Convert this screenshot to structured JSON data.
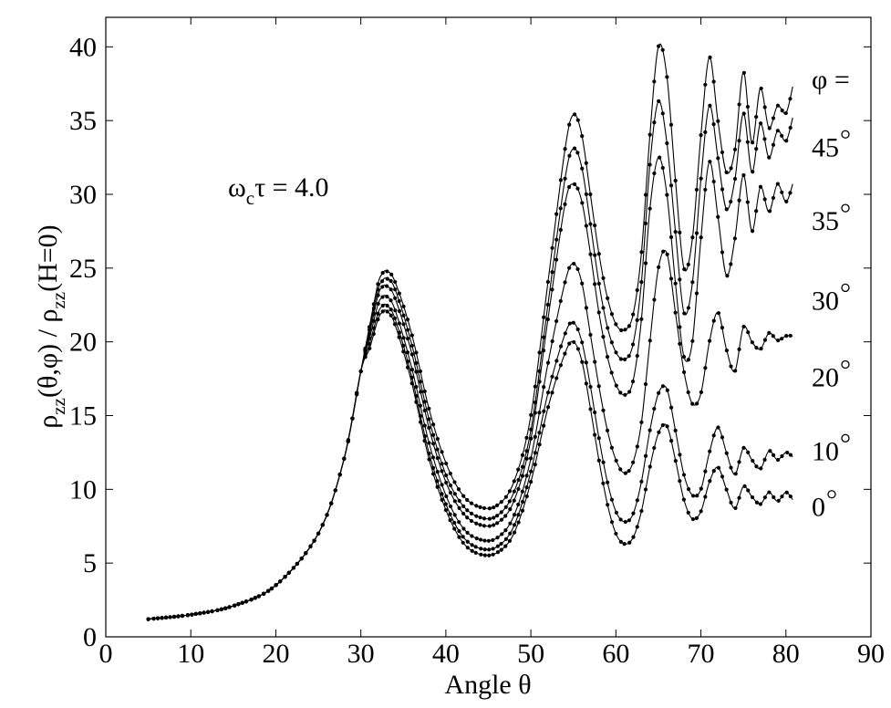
{
  "chart_data": {
    "type": "line",
    "xlabel": "Angle θ",
    "ylabel": "ρzz(θ,φ) / ρzz(H=0)",
    "ylabel_parts": {
      "rho1": "ρ",
      "sub1": "zz",
      "mid": "(θ,φ) / ρ",
      "sub2": "zz",
      "end": "(H=0)"
    },
    "annotation": {
      "omega": "ω",
      "sub": "c",
      "rest": "τ = 4.0"
    },
    "legend_title": "φ =",
    "xlim": [
      0,
      90
    ],
    "ylim": [
      0,
      42
    ],
    "xticks": [
      "0",
      "10",
      "20",
      "30",
      "40",
      "50",
      "60",
      "70",
      "80",
      "90"
    ],
    "yticks": [
      "0",
      "5",
      "10",
      "15",
      "20",
      "25",
      "30",
      "35",
      "40"
    ],
    "grid": false,
    "series": [
      {
        "name": "45°",
        "label_num": "45",
        "label_y": 33.2,
        "points": [
          [
            5,
            1.2
          ],
          [
            10,
            1.5
          ],
          [
            15,
            2.1
          ],
          [
            20,
            3.5
          ],
          [
            25,
            7.0
          ],
          [
            28,
            12
          ],
          [
            30,
            18
          ],
          [
            31,
            21
          ],
          [
            32,
            23.9
          ],
          [
            32.5,
            24.6
          ],
          [
            33,
            24.8
          ],
          [
            34,
            24.1
          ],
          [
            36,
            20.5
          ],
          [
            38,
            15.5
          ],
          [
            40,
            11.8
          ],
          [
            42,
            9.6
          ],
          [
            44,
            8.8
          ],
          [
            46,
            8.9
          ],
          [
            48,
            10.5
          ],
          [
            50,
            15
          ],
          [
            52,
            24
          ],
          [
            54,
            33
          ],
          [
            55,
            35.4
          ],
          [
            56,
            34
          ],
          [
            57,
            30
          ],
          [
            58,
            26
          ],
          [
            59,
            23
          ],
          [
            60,
            21.2
          ],
          [
            61,
            20.8
          ],
          [
            62,
            21.8
          ],
          [
            63,
            26
          ],
          [
            64,
            34
          ],
          [
            65,
            40
          ],
          [
            66,
            38
          ],
          [
            67,
            31
          ],
          [
            68,
            25
          ],
          [
            69,
            27
          ],
          [
            70,
            34
          ],
          [
            71,
            39.3
          ],
          [
            72,
            35
          ],
          [
            73,
            31.5
          ],
          [
            74,
            33
          ],
          [
            75,
            38.3
          ],
          [
            76,
            33.5
          ],
          [
            77,
            37.2
          ],
          [
            78,
            34.5
          ],
          [
            79,
            36
          ],
          [
            80,
            35.5
          ],
          [
            80.8,
            37.3
          ]
        ]
      },
      {
        "name": "35°",
        "label_num": "35",
        "label_y": 28.2,
        "points": [
          [
            5,
            1.2
          ],
          [
            10,
            1.5
          ],
          [
            15,
            2.1
          ],
          [
            20,
            3.5
          ],
          [
            25,
            7.0
          ],
          [
            28,
            12
          ],
          [
            30,
            18
          ],
          [
            31,
            20.8
          ],
          [
            32,
            23.5
          ],
          [
            32.5,
            24.1
          ],
          [
            33,
            24.3
          ],
          [
            34,
            23.6
          ],
          [
            36,
            19.8
          ],
          [
            38,
            14.8
          ],
          [
            40,
            11.0
          ],
          [
            42,
            8.9
          ],
          [
            44,
            8.1
          ],
          [
            46,
            8.2
          ],
          [
            48,
            9.8
          ],
          [
            50,
            14
          ],
          [
            52,
            22.5
          ],
          [
            54,
            31
          ],
          [
            55,
            33.1
          ],
          [
            56,
            31.8
          ],
          [
            57,
            28
          ],
          [
            58,
            24
          ],
          [
            59,
            21
          ],
          [
            60,
            19.3
          ],
          [
            61,
            18.8
          ],
          [
            62,
            19.8
          ],
          [
            63,
            24
          ],
          [
            64,
            32
          ],
          [
            65,
            36.3
          ],
          [
            66,
            33.5
          ],
          [
            67,
            27.5
          ],
          [
            68,
            22
          ],
          [
            69,
            24
          ],
          [
            70,
            31
          ],
          [
            71,
            36.0
          ],
          [
            72,
            32.5
          ],
          [
            73,
            29
          ],
          [
            74,
            31
          ],
          [
            75,
            35.5
          ],
          [
            76,
            31.5
          ],
          [
            77,
            34.8
          ],
          [
            78,
            32.5
          ],
          [
            79,
            34.3
          ],
          [
            80,
            33.6
          ],
          [
            80.8,
            35.2
          ]
        ]
      },
      {
        "name": "30°",
        "label_num": "30",
        "label_y": 22.8,
        "points": [
          [
            5,
            1.2
          ],
          [
            10,
            1.5
          ],
          [
            15,
            2.1
          ],
          [
            20,
            3.5
          ],
          [
            25,
            7.0
          ],
          [
            28,
            12
          ],
          [
            30,
            18
          ],
          [
            31,
            20.5
          ],
          [
            32,
            23.1
          ],
          [
            32.5,
            23.7
          ],
          [
            33,
            23.8
          ],
          [
            34,
            23.0
          ],
          [
            36,
            19.2
          ],
          [
            38,
            14.2
          ],
          [
            40,
            10.5
          ],
          [
            42,
            8.4
          ],
          [
            44,
            7.6
          ],
          [
            46,
            7.7
          ],
          [
            48,
            9.2
          ],
          [
            50,
            13.4
          ],
          [
            52,
            21.5
          ],
          [
            54,
            29.3
          ],
          [
            55,
            30.7
          ],
          [
            56,
            29.5
          ],
          [
            57,
            26
          ],
          [
            58,
            22
          ],
          [
            59,
            19
          ],
          [
            60,
            17.1
          ],
          [
            61,
            16.4
          ],
          [
            62,
            17.3
          ],
          [
            63,
            21.5
          ],
          [
            64,
            29
          ],
          [
            65,
            32.5
          ],
          [
            66,
            30
          ],
          [
            67,
            24
          ],
          [
            68,
            19
          ],
          [
            69,
            20
          ],
          [
            70,
            27
          ],
          [
            71,
            32.2
          ],
          [
            72,
            28.5
          ],
          [
            73,
            24.5
          ],
          [
            74,
            27
          ],
          [
            75,
            31.3
          ],
          [
            76,
            27.5
          ],
          [
            77,
            30.5
          ],
          [
            78,
            28.8
          ],
          [
            79,
            30.7
          ],
          [
            80,
            29.5
          ],
          [
            80.8,
            30.7
          ]
        ]
      },
      {
        "name": "20°",
        "label_num": "20",
        "label_y": 17.6,
        "points": [
          [
            5,
            1.2
          ],
          [
            10,
            1.5
          ],
          [
            15,
            2.1
          ],
          [
            20,
            3.5
          ],
          [
            25,
            7.0
          ],
          [
            28,
            12
          ],
          [
            30,
            18
          ],
          [
            31,
            20.2
          ],
          [
            32,
            22.5
          ],
          [
            32.5,
            23.0
          ],
          [
            33,
            23.1
          ],
          [
            34,
            22.2
          ],
          [
            36,
            18.2
          ],
          [
            38,
            13.2
          ],
          [
            40,
            9.6
          ],
          [
            42,
            7.4
          ],
          [
            44,
            6.6
          ],
          [
            46,
            6.7
          ],
          [
            48,
            8.2
          ],
          [
            50,
            12.1
          ],
          [
            52,
            18.5
          ],
          [
            54,
            24
          ],
          [
            55,
            25.3
          ],
          [
            56,
            24
          ],
          [
            57,
            20.5
          ],
          [
            58,
            17
          ],
          [
            59,
            14
          ],
          [
            60,
            12.0
          ],
          [
            61,
            11.1
          ],
          [
            62,
            11.8
          ],
          [
            63,
            14.5
          ],
          [
            64,
            20
          ],
          [
            65,
            25
          ],
          [
            66,
            26
          ],
          [
            67,
            22
          ],
          [
            68,
            18
          ],
          [
            69,
            15.8
          ],
          [
            70,
            16.5
          ],
          [
            71,
            20
          ],
          [
            72,
            22.0
          ],
          [
            73,
            19.5
          ],
          [
            74,
            18
          ],
          [
            75,
            21
          ],
          [
            76,
            20
          ],
          [
            77,
            19.5
          ],
          [
            78,
            20.6
          ],
          [
            79,
            20.1
          ],
          [
            80,
            20.4
          ],
          [
            80.8,
            20.4
          ]
        ]
      },
      {
        "name": "10°",
        "label_num": "10",
        "label_y": 12.6,
        "points": [
          [
            5,
            1.2
          ],
          [
            10,
            1.5
          ],
          [
            15,
            2.1
          ],
          [
            20,
            3.5
          ],
          [
            25,
            7.0
          ],
          [
            28,
            12
          ],
          [
            30,
            18
          ],
          [
            31,
            19.8
          ],
          [
            32,
            21.9
          ],
          [
            32.5,
            22.4
          ],
          [
            33,
            22.5
          ],
          [
            34,
            21.6
          ],
          [
            36,
            17.6
          ],
          [
            38,
            12.5
          ],
          [
            40,
            9.0
          ],
          [
            42,
            6.8
          ],
          [
            44,
            6.0
          ],
          [
            46,
            6.1
          ],
          [
            48,
            7.5
          ],
          [
            50,
            11.2
          ],
          [
            52,
            16.5
          ],
          [
            54,
            20.5
          ],
          [
            55,
            21.3
          ],
          [
            56,
            20
          ],
          [
            57,
            17
          ],
          [
            58,
            13.5
          ],
          [
            59,
            10.5
          ],
          [
            60,
            8.5
          ],
          [
            61,
            7.8
          ],
          [
            62,
            8.3
          ],
          [
            63,
            10.5
          ],
          [
            64,
            14
          ],
          [
            65,
            16.5
          ],
          [
            66,
            16.8
          ],
          [
            67,
            14
          ],
          [
            68,
            11
          ],
          [
            69,
            9.6
          ],
          [
            70,
            10
          ],
          [
            71,
            12.5
          ],
          [
            72,
            14.2
          ],
          [
            73,
            12.5
          ],
          [
            74,
            11
          ],
          [
            75,
            12.8
          ],
          [
            76,
            12
          ],
          [
            77,
            11.4
          ],
          [
            78,
            12.6
          ],
          [
            79,
            12
          ],
          [
            80,
            12.5
          ],
          [
            80.8,
            12.2
          ]
        ]
      },
      {
        "name": "0°",
        "label_num": "0",
        "label_y": 8.8,
        "points": [
          [
            5,
            1.2
          ],
          [
            10,
            1.5
          ],
          [
            15,
            2.1
          ],
          [
            20,
            3.5
          ],
          [
            25,
            7.0
          ],
          [
            28,
            12
          ],
          [
            30,
            18
          ],
          [
            31,
            19.5
          ],
          [
            32,
            21.5
          ],
          [
            32.5,
            22.0
          ],
          [
            33,
            22.1
          ],
          [
            34,
            21.2
          ],
          [
            36,
            17.2
          ],
          [
            38,
            12.1
          ],
          [
            40,
            8.6
          ],
          [
            42,
            6.4
          ],
          [
            44,
            5.6
          ],
          [
            46,
            5.7
          ],
          [
            48,
            7.0
          ],
          [
            50,
            10.5
          ],
          [
            52,
            15.5
          ],
          [
            54,
            19.2
          ],
          [
            55,
            20.0
          ],
          [
            56,
            18.7
          ],
          [
            57,
            15.5
          ],
          [
            58,
            12
          ],
          [
            59,
            9
          ],
          [
            60,
            7.0
          ],
          [
            61,
            6.3
          ],
          [
            62,
            6.7
          ],
          [
            63,
            8.5
          ],
          [
            64,
            11.5
          ],
          [
            65,
            13.8
          ],
          [
            66,
            14.3
          ],
          [
            67,
            12
          ],
          [
            68,
            9.3
          ],
          [
            69,
            8
          ],
          [
            70,
            8.5
          ],
          [
            71,
            10.5
          ],
          [
            72,
            11.5
          ],
          [
            73,
            10
          ],
          [
            74,
            8.7
          ],
          [
            75,
            10.2
          ],
          [
            76,
            9.5
          ],
          [
            77,
            9
          ],
          [
            78,
            9.8
          ],
          [
            79,
            9.2
          ],
          [
            80,
            9.8
          ],
          [
            80.8,
            9.3
          ]
        ]
      }
    ]
  }
}
